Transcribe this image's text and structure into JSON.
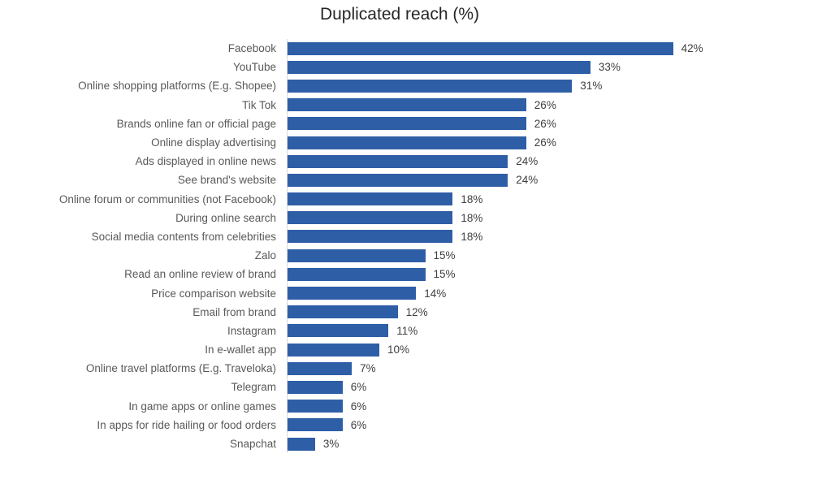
{
  "chart_data": {
    "type": "bar",
    "orientation": "horizontal",
    "title": "Duplicated reach (%)",
    "categories": [
      "Facebook",
      "YouTube",
      "Online shopping platforms (E.g. Shopee)",
      "Tik Tok",
      "Brands online fan or official page",
      "Online display advertising",
      "Ads displayed in online news",
      "See brand's website",
      "Online forum or communities (not Facebook)",
      "During online search",
      "Social media contents from celebrities",
      "Zalo",
      "Read an online review of brand",
      "Price comparison website",
      "Email from brand",
      "Instagram",
      "In e-wallet app",
      "Online travel platforms (E.g. Traveloka)",
      "Telegram",
      "In game apps or online games",
      "In apps for ride hailing or food orders",
      "Snapchat"
    ],
    "values": [
      42,
      33,
      31,
      26,
      26,
      26,
      24,
      24,
      18,
      18,
      18,
      15,
      15,
      14,
      12,
      11,
      10,
      7,
      6,
      6,
      6,
      3
    ],
    "value_suffix": "%",
    "xlim": [
      0,
      45
    ],
    "grid": false,
    "legend": false,
    "bar_color": "#2E5EA6",
    "axis_line_color": "#D9D9D9",
    "category_label_color": "#595959",
    "value_label_color": "#404040",
    "title_color": "#262626"
  }
}
